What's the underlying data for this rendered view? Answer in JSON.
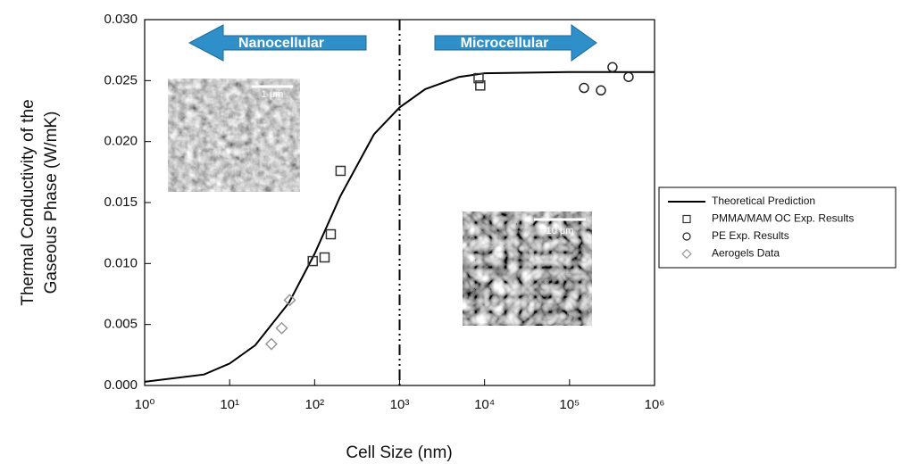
{
  "chart_data": {
    "type": "scatter",
    "xlabel": "Cell Size (nm)",
    "ylabel": [
      "Thermal Conductivity of the",
      "Gaseous Phase (W/mK)"
    ],
    "xscale": "log",
    "xlim": [
      1,
      1000000
    ],
    "ylim": [
      0,
      0.03
    ],
    "xticks": [
      {
        "value": 1,
        "label": "10⁰"
      },
      {
        "value": 10,
        "label": "10¹"
      },
      {
        "value": 100,
        "label": "10²"
      },
      {
        "value": 1000,
        "label": "10³"
      },
      {
        "value": 10000,
        "label": "10⁴"
      },
      {
        "value": 100000,
        "label": "10⁵"
      },
      {
        "value": 1000000,
        "label": "10⁶"
      }
    ],
    "yticks": [
      {
        "value": 0,
        "label": "0.000"
      },
      {
        "value": 0.005,
        "label": "0.005"
      },
      {
        "value": 0.01,
        "label": "0.010"
      },
      {
        "value": 0.015,
        "label": "0.015"
      },
      {
        "value": 0.02,
        "label": "0.020"
      },
      {
        "value": 0.025,
        "label": "0.025"
      },
      {
        "value": 0.03,
        "label": "0.030"
      }
    ],
    "vline": 1000,
    "annotations": [
      "Nanocellular",
      "Microcellular",
      "1 μm",
      "10 μm"
    ],
    "legend": "right",
    "series": [
      {
        "name": "Theoretical Prediction",
        "style": "line",
        "color": "#000000",
        "x": [
          1,
          5,
          10,
          20,
          50,
          100,
          200,
          500,
          1000,
          2000,
          5000,
          10000,
          100000,
          1000000
        ],
        "values": [
          0.0003,
          0.0009,
          0.0018,
          0.0033,
          0.0068,
          0.0108,
          0.0155,
          0.0206,
          0.0228,
          0.0243,
          0.0253,
          0.0256,
          0.0257,
          0.0257
        ]
      },
      {
        "name": "PMMA/MAM OC Exp. Results",
        "style": "square",
        "color": "#333333",
        "x": [
          95,
          131,
          155,
          202,
          8500,
          8900
        ],
        "values": [
          0.0102,
          0.0105,
          0.0124,
          0.0176,
          0.0252,
          0.0246
        ]
      },
      {
        "name": "PE Exp. Results",
        "style": "circle",
        "color": "#222222",
        "x": [
          148000,
          234000,
          320000,
          495000
        ],
        "values": [
          0.0244,
          0.0242,
          0.0261,
          0.0253
        ]
      },
      {
        "name": "Aerogels Data",
        "style": "diamond",
        "color": "#999999",
        "x": [
          31,
          41,
          51
        ],
        "values": [
          0.0034,
          0.0047,
          0.007
        ]
      }
    ]
  }
}
